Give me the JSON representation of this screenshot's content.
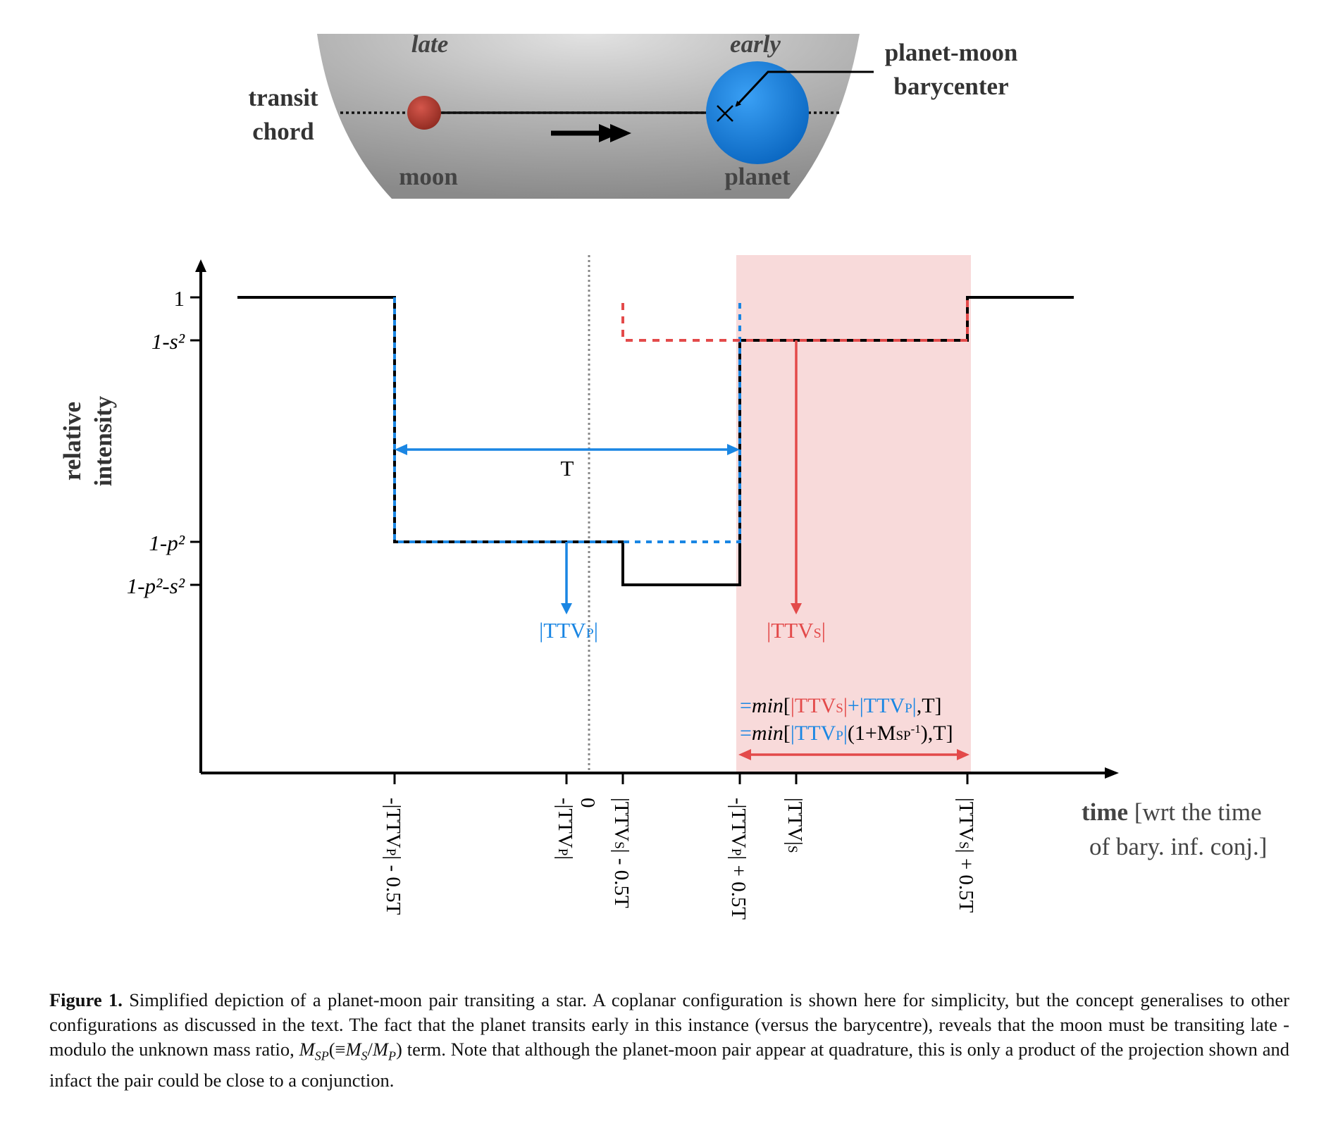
{
  "colors": {
    "planet": "#1a86e3",
    "moon": "#e34a4a",
    "step": "#000000",
    "window": "#f8dada"
  },
  "star": {
    "late": "late",
    "early": "early",
    "transit_chord": [
      "transit",
      "chord"
    ],
    "moon": "moon",
    "planet": "planet",
    "barycenter": [
      "planet-moon",
      "barycenter"
    ]
  },
  "chart_data": {
    "type": "line",
    "ylabel": [
      "relative",
      "intensity"
    ],
    "xlabel_bold": "time",
    "xlabel_rest": "[wrt the time",
    "xlabel_line2": "of bary. inf. conj.]",
    "yticks": [
      "1",
      "1-s²",
      "1-p²",
      "1-p²-s²"
    ],
    "xticks": [
      "-|TTVP| - 0.5T",
      "-|TTVP|",
      "0",
      "|TTVS| - 0.5T",
      "-|TTVP| + 0.5T",
      "|TTV|S",
      "|TTVS| + 0.5T"
    ],
    "T_label": "T",
    "ttvp_label": "|TTVP|",
    "ttvs_label": "|TTVS|",
    "formula1": "=min[|TTVS|+|TTVP|,T]",
    "formula2": "=min[|TTVP|(1+MSP-1),T]"
  },
  "caption": {
    "label": "Figure 1.",
    "text_a": " Simplified depiction of a planet-moon pair transiting a star. A coplanar configuration is shown here for simplicity, but the concept generalises to other configurations as discussed in the text. The fact that the planet transits early in this instance (versus the barycentre), reveals that the moon must be transiting late - modulo the unknown mass ratio, ",
    "msp": "M",
    "msp_sub": "SP",
    "equiv": "(≡",
    "ms": "M",
    "ms_sub": "S",
    "slash": "/",
    "mp": "M",
    "mp_sub": "P",
    "close": ")",
    "text_b": " term. Note that although the planet-moon pair appear at quadrature, this is only a product of the projection shown and infact the pair could be close to a conjunction."
  }
}
